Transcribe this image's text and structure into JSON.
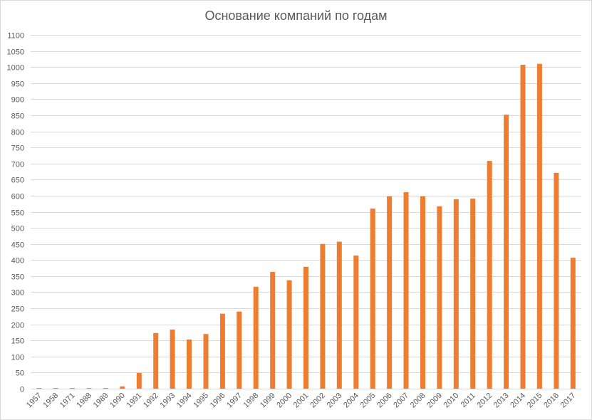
{
  "chart_data": {
    "type": "bar",
    "title": "Основание компаний по годам",
    "xlabel": "",
    "ylabel": "",
    "ylim": [
      0,
      1100
    ],
    "ytick_step": 50,
    "yticks": [
      0,
      50,
      100,
      150,
      200,
      250,
      300,
      350,
      400,
      450,
      500,
      550,
      600,
      650,
      700,
      750,
      800,
      850,
      900,
      950,
      1000,
      1050,
      1100
    ],
    "grid": true,
    "legend": "none",
    "bar_color": "#ED7D31",
    "grid_color": "#D9D9D9",
    "categories": [
      "1957",
      "1958",
      "1971",
      "1988",
      "1989",
      "1990",
      "1991",
      "1992",
      "1993",
      "1994",
      "1995",
      "1996",
      "1997",
      "1998",
      "1999",
      "2000",
      "2001",
      "2002",
      "2003",
      "2004",
      "2005",
      "2006",
      "2007",
      "2008",
      "2009",
      "2010",
      "2011",
      "2012",
      "2013",
      "2014",
      "2015",
      "2016",
      "2017"
    ],
    "values": [
      2,
      2,
      2,
      2,
      2,
      7,
      49,
      173,
      184,
      153,
      170,
      233,
      240,
      317,
      363,
      337,
      379,
      450,
      457,
      414,
      560,
      598,
      611,
      598,
      567,
      589,
      591,
      708,
      852,
      1007,
      1010,
      671,
      407
    ]
  }
}
